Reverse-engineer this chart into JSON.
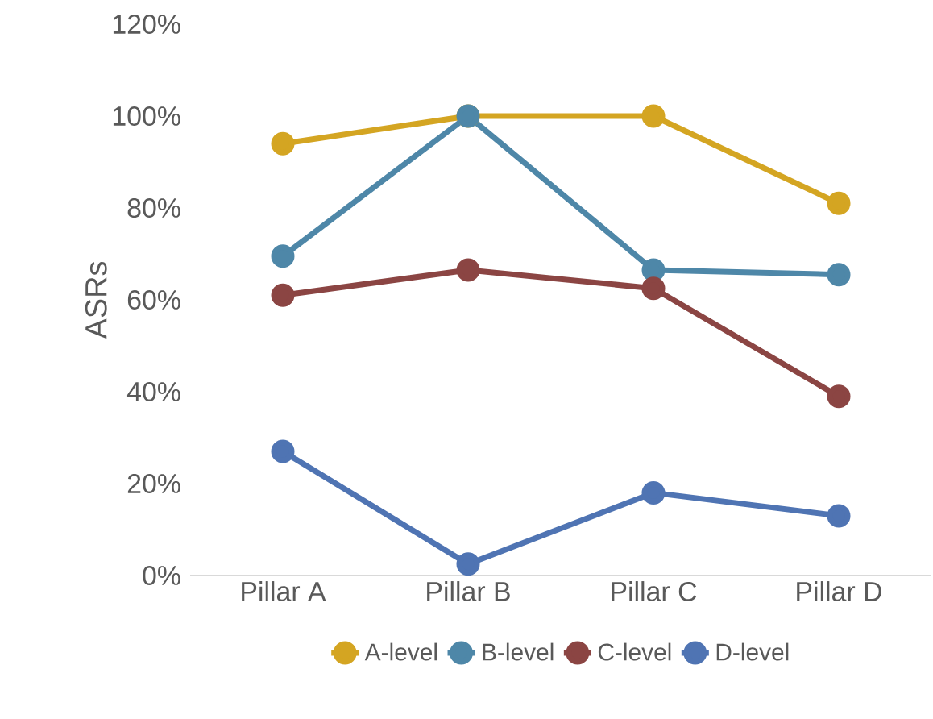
{
  "chart_data": {
    "type": "line",
    "ylabel": "ASRs",
    "categories": [
      "Pillar A",
      "Pillar B",
      "Pillar C",
      "Pillar D"
    ],
    "series": [
      {
        "name": "A-level",
        "color": "#d4a522",
        "values": [
          94,
          100,
          100,
          81
        ]
      },
      {
        "name": "B-level",
        "color": "#4e87a8",
        "values": [
          69.5,
          100,
          66.5,
          65.5
        ]
      },
      {
        "name": "C-level",
        "color": "#8b4543",
        "values": [
          61,
          66.5,
          62.5,
          39
        ]
      },
      {
        "name": "D-level",
        "color": "#4f74b3",
        "values": [
          27,
          2.5,
          18,
          13
        ]
      }
    ],
    "ylim": [
      0,
      120
    ],
    "yticks": [
      {
        "value": 0,
        "label": "0%"
      },
      {
        "value": 20,
        "label": "20%"
      },
      {
        "value": 40,
        "label": "40%"
      },
      {
        "value": 60,
        "label": "60%"
      },
      {
        "value": 80,
        "label": "80%"
      },
      {
        "value": 100,
        "label": "100%"
      },
      {
        "value": 120,
        "label": "120%"
      }
    ],
    "grid": false,
    "legend": "bottom",
    "marker": "circle",
    "line_style": "solid"
  }
}
